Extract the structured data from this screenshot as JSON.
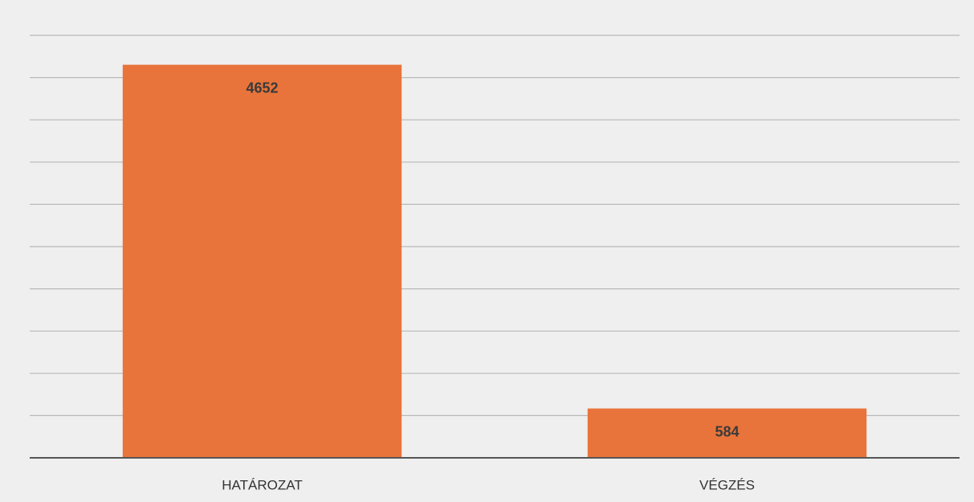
{
  "chart_data": {
    "type": "bar",
    "categories": [
      "HATÁROZAT",
      "VÉGZÉS"
    ],
    "values": [
      4652,
      584
    ],
    "color": "#e8743b",
    "ylim": [
      0,
      5000
    ],
    "yticks": [
      0,
      500,
      1000,
      1500,
      2000,
      2500,
      3000,
      3500,
      4000,
      4500,
      5000
    ],
    "grid": true
  }
}
